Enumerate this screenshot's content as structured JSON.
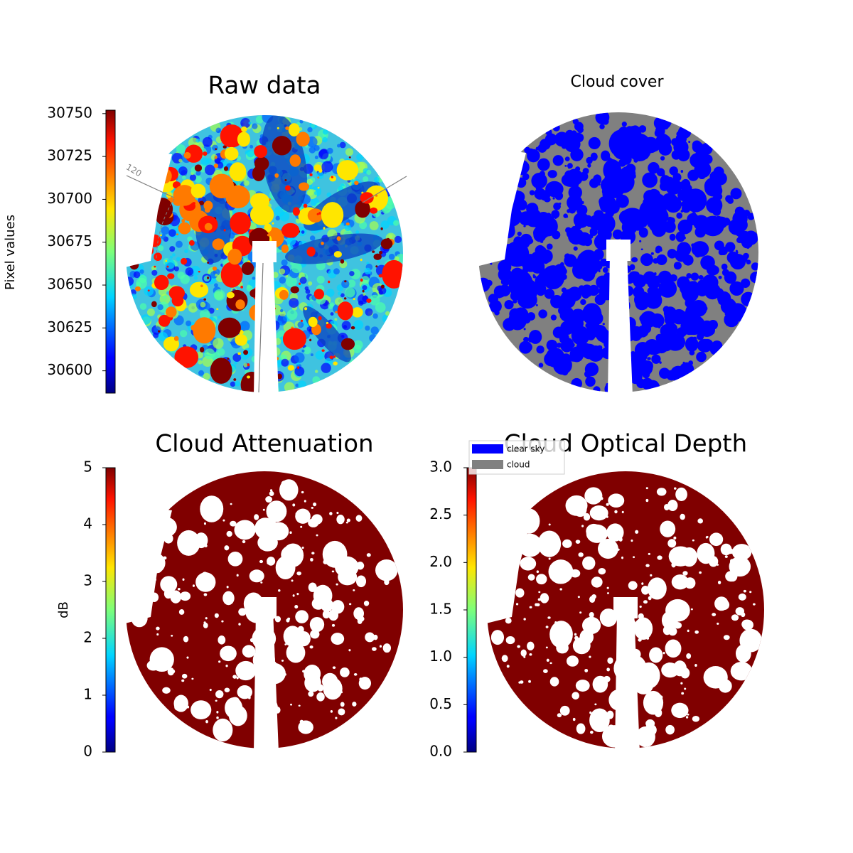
{
  "chart_data": [
    {
      "type": "image",
      "title": "Raw data",
      "colorbar_label": "Pixel values",
      "colormap": "jet",
      "clim": [
        30587,
        30752
      ],
      "yticks": [
        30600,
        30625,
        30650,
        30675,
        30700,
        30725,
        30750
      ],
      "annotation": "120"
    },
    {
      "type": "mask",
      "title": "Cloud cover",
      "series": [
        {
          "name": "clear sky",
          "color": "#0000ff"
        },
        {
          "name": "cloud",
          "color": "#808080"
        }
      ]
    },
    {
      "type": "image",
      "title": "Cloud Attenuation",
      "colorbar_label": "dB",
      "colormap": "jet",
      "clim": [
        0,
        5
      ],
      "yticks": [
        0,
        1,
        2,
        3,
        4,
        5
      ]
    },
    {
      "type": "image",
      "title": "Cloud Optical Depth",
      "colormap": "jet",
      "clim": [
        0,
        3
      ],
      "yticks": [
        {
          "value": 0,
          "label": "0.0"
        },
        0.5,
        {
          "value": 1,
          "label": "1.0"
        },
        1.5,
        {
          "value": 2,
          "label": "2.0"
        },
        2.5,
        {
          "value": 3,
          "label": "3.0"
        }
      ]
    }
  ]
}
